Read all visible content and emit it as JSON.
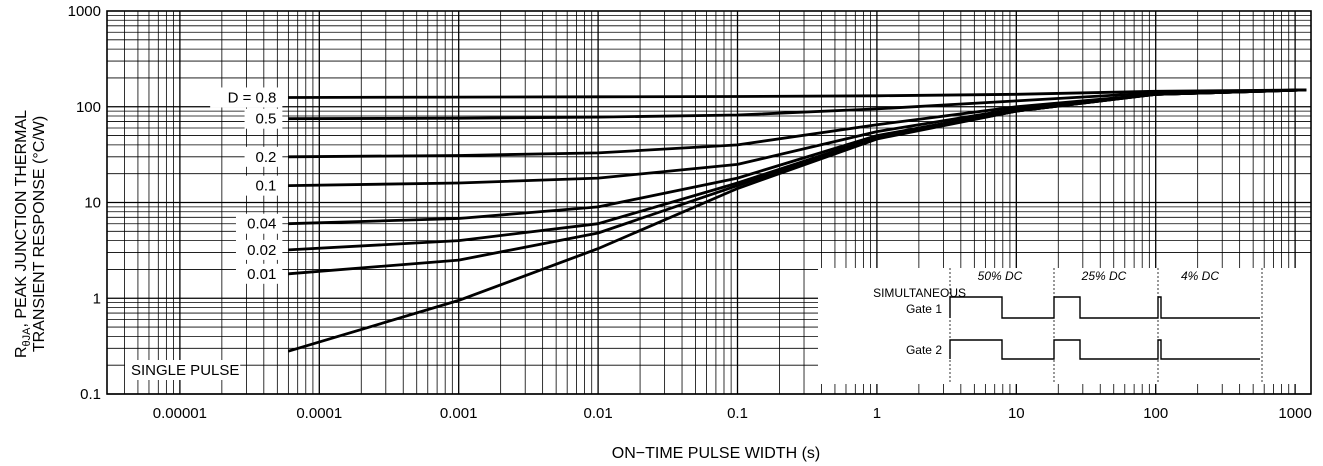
{
  "chart_data": {
    "type": "line",
    "x_scale": "log",
    "y_scale": "log",
    "xlim": [
      3e-06,
      1300
    ],
    "ylim": [
      0.1,
      1000
    ],
    "grid": true,
    "xlabel": "ON−TIME PULSE WIDTH (s)",
    "ylabel_line1": "R",
    "ylabel_sub": "θJA",
    "ylabel_rest": ", PEAK JUNCTION THERMAL",
    "ylabel_line2": "TRANSIENT RESPONSE (°C/W)",
    "x_ticks": [
      {
        "value": 1e-05,
        "label": "0.00001"
      },
      {
        "value": 0.0001,
        "label": "0.0001"
      },
      {
        "value": 0.001,
        "label": "0.001"
      },
      {
        "value": 0.01,
        "label": "0.01"
      },
      {
        "value": 0.1,
        "label": "0.1"
      },
      {
        "value": 1,
        "label": "1"
      },
      {
        "value": 10,
        "label": "10"
      },
      {
        "value": 100,
        "label": "100"
      },
      {
        "value": 1000,
        "label": "1000"
      }
    ],
    "y_ticks": [
      {
        "value": 0.1,
        "label": "0.1"
      },
      {
        "value": 1,
        "label": "1"
      },
      {
        "value": 10,
        "label": "10"
      },
      {
        "value": 100,
        "label": "100"
      },
      {
        "value": 1000,
        "label": "1000"
      }
    ],
    "series": [
      {
        "name": "D = 0.8",
        "x": [
          6e-05,
          0.001,
          0.01,
          0.1,
          1,
          10,
          100,
          1200
        ],
        "y": [
          125,
          126,
          127,
          128,
          130,
          135,
          145,
          150
        ]
      },
      {
        "name": "0.5",
        "x": [
          6e-05,
          0.001,
          0.01,
          0.1,
          1,
          10,
          100,
          1200
        ],
        "y": [
          75,
          76,
          78,
          82,
          95,
          115,
          140,
          150
        ]
      },
      {
        "name": "0.2",
        "x": [
          6e-05,
          0.001,
          0.01,
          0.1,
          1,
          10,
          100,
          1200
        ],
        "y": [
          30,
          31,
          33,
          40,
          65,
          100,
          135,
          150
        ]
      },
      {
        "name": "0.1",
        "x": [
          6e-05,
          0.001,
          0.01,
          0.1,
          1,
          10,
          100,
          1200
        ],
        "y": [
          15,
          16,
          18,
          25,
          55,
          95,
          135,
          150
        ]
      },
      {
        "name": "0.04",
        "x": [
          6e-05,
          0.001,
          0.01,
          0.1,
          1,
          10,
          100,
          1200
        ],
        "y": [
          6,
          6.8,
          9,
          18,
          50,
          92,
          135,
          150
        ]
      },
      {
        "name": "0.02",
        "x": [
          6e-05,
          0.001,
          0.01,
          0.1,
          1,
          10,
          100,
          1200
        ],
        "y": [
          3.2,
          4,
          6,
          16,
          48,
          90,
          135,
          150
        ]
      },
      {
        "name": "0.01",
        "x": [
          6e-05,
          0.001,
          0.01,
          0.1,
          1,
          10,
          100,
          1200
        ],
        "y": [
          1.8,
          2.5,
          4.8,
          15,
          47,
          90,
          135,
          150
        ]
      },
      {
        "name": "SINGLE PULSE",
        "x": [
          6e-05,
          0.001,
          0.01,
          0.1,
          1,
          10,
          100,
          1200
        ],
        "y": [
          0.28,
          0.95,
          3.3,
          14,
          46,
          90,
          135,
          150
        ]
      }
    ],
    "inset": {
      "title": "SIMULTANEOUS",
      "gate1": "Gate 1",
      "gate2": "Gate 2",
      "duty_cycles": [
        "50% DC",
        "25% DC",
        "4% DC"
      ]
    }
  }
}
